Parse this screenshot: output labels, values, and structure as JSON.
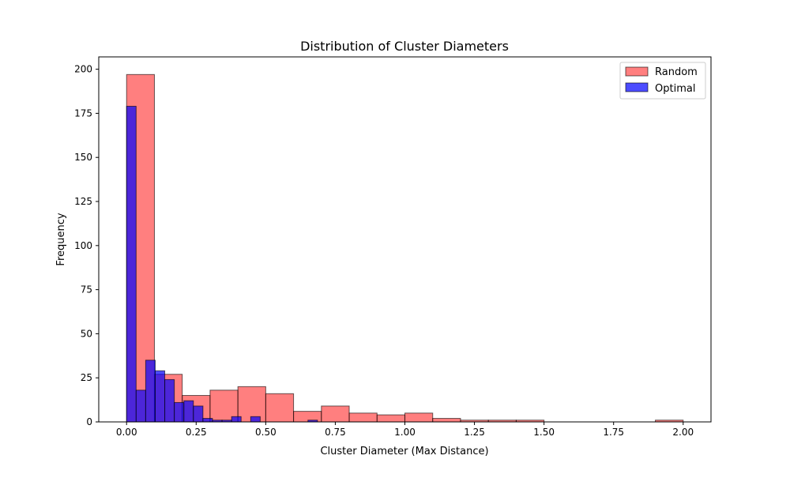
{
  "chart_data": {
    "type": "bar",
    "title": "Distribution of Cluster Diameters",
    "xlabel": "Cluster Diameter (Max Distance)",
    "ylabel": "Frequency",
    "xlim": [
      -0.1,
      2.1
    ],
    "ylim": [
      0,
      207
    ],
    "x_ticks": [
      0.0,
      0.25,
      0.5,
      0.75,
      1.0,
      1.25,
      1.5,
      1.75,
      2.0
    ],
    "x_tick_labels": [
      "0.00",
      "0.25",
      "0.50",
      "0.75",
      "1.00",
      "1.25",
      "1.50",
      "1.75",
      "2.00"
    ],
    "y_ticks": [
      0,
      25,
      50,
      75,
      100,
      125,
      150,
      175,
      200
    ],
    "y_tick_labels": [
      "0",
      "25",
      "50",
      "75",
      "100",
      "125",
      "150",
      "175",
      "200"
    ],
    "grid": false,
    "legend_position": "top-right",
    "series": [
      {
        "name": "Random",
        "color": "#ff0000",
        "alpha": 0.5,
        "bin_edges": [
          0.0,
          0.1,
          0.2,
          0.3,
          0.4,
          0.5,
          0.6,
          0.7,
          0.8,
          0.9,
          1.0,
          1.1,
          1.2,
          1.3,
          1.4,
          1.5,
          1.6,
          1.7,
          1.8,
          1.9,
          2.0
        ],
        "counts": [
          197,
          27,
          15,
          18,
          20,
          16,
          6,
          9,
          5,
          4,
          5,
          2,
          1,
          1,
          1,
          0,
          0,
          0,
          0,
          1
        ]
      },
      {
        "name": "Optimal",
        "color": "#0000ff",
        "alpha": 0.7,
        "bin_edges": [
          0.0,
          0.0343,
          0.0686,
          0.1029,
          0.1372,
          0.1715,
          0.2058,
          0.2401,
          0.2744,
          0.3087,
          0.343,
          0.3773,
          0.4116,
          0.4459,
          0.4802,
          0.5145,
          0.5488,
          0.5831,
          0.6174,
          0.6517,
          0.686
        ],
        "counts": [
          179,
          18,
          35,
          29,
          24,
          11,
          12,
          9,
          2,
          1,
          1,
          3,
          0,
          3,
          0,
          0,
          0,
          0,
          0,
          1
        ]
      }
    ]
  }
}
